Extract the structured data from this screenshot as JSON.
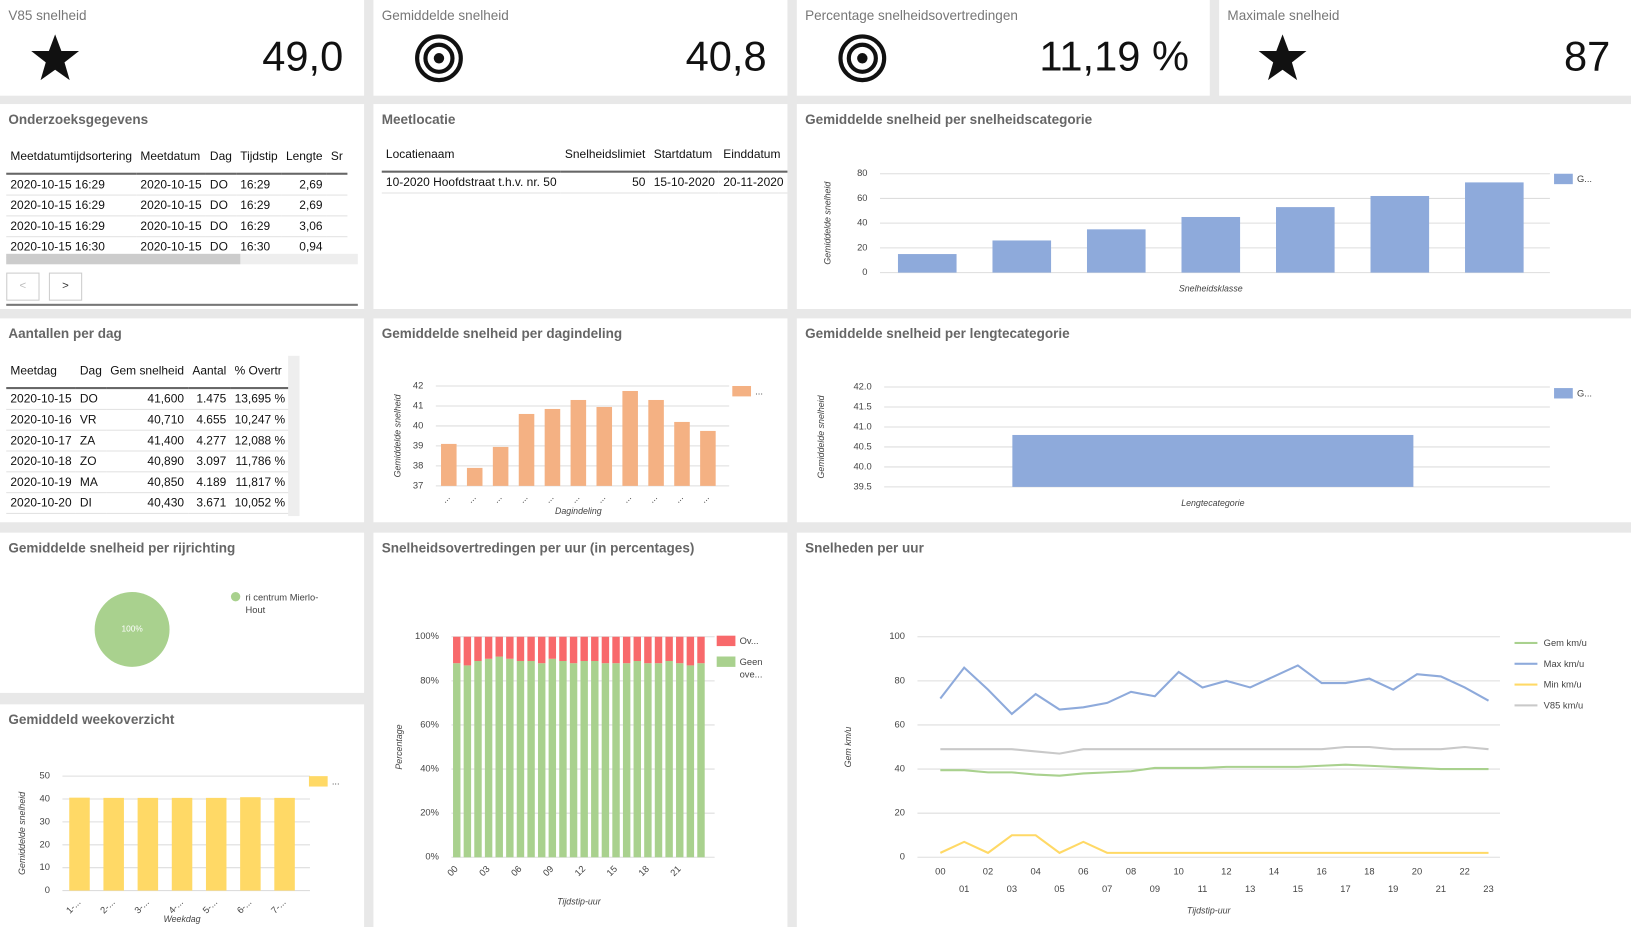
{
  "kpis": [
    {
      "title": "V85 snelheid",
      "value": "49,0"
    },
    {
      "title": "Gemiddelde snelheid",
      "value": "40,8"
    },
    {
      "title": "Percentage snelheidsovertredingen",
      "value": "11,19 %"
    },
    {
      "title": "Maximale snelheid",
      "value": "87"
    }
  ],
  "tables": {
    "onderzoek": {
      "title": "Onderzoeksgegevens",
      "headers": [
        "Meetdatumtijdsortering",
        "Meetdatum",
        "Dag",
        "Tijdstip",
        "Lengte",
        "Sr"
      ],
      "rows": [
        [
          "2020-10-15 16:29",
          "2020-10-15",
          "DO",
          "16:29",
          "2,69",
          ""
        ],
        [
          "2020-10-15 16:29",
          "2020-10-15",
          "DO",
          "16:29",
          "2,69",
          ""
        ],
        [
          "2020-10-15 16:29",
          "2020-10-15",
          "DO",
          "16:29",
          "3,06",
          ""
        ],
        [
          "2020-10-15 16:30",
          "2020-10-15",
          "DO",
          "16:30",
          "0,94",
          ""
        ]
      ],
      "pager": [
        "<",
        ">"
      ]
    },
    "meetlocatie": {
      "title": "Meetlocatie",
      "headers": [
        "Locatienaam",
        "Snelheidslimiet",
        "Startdatum",
        "Einddatum"
      ],
      "rows": [
        [
          "10-2020 Hoofdstraat t.h.v. nr. 50",
          "50",
          "15-10-2020",
          "20-11-2020"
        ]
      ]
    },
    "perdag": {
      "title": "Aantallen per dag",
      "headers": [
        "Meetdag",
        "Dag",
        "Gem snelheid",
        "Aantal",
        "% Overtr"
      ],
      "rows": [
        [
          "2020-10-15",
          "DO",
          "41,600",
          "1.475",
          "13,695 %"
        ],
        [
          "2020-10-16",
          "VR",
          "40,710",
          "4.655",
          "10,247 %"
        ],
        [
          "2020-10-17",
          "ZA",
          "41,400",
          "4.277",
          "12,088 %"
        ],
        [
          "2020-10-18",
          "ZO",
          "40,890",
          "3.097",
          "11,786 %"
        ],
        [
          "2020-10-19",
          "MA",
          "40,850",
          "4.189",
          "11,817 %"
        ],
        [
          "2020-10-20",
          "DI",
          "40,430",
          "3.671",
          "10,052 %"
        ]
      ]
    }
  },
  "chart_data": [
    {
      "type": "bar",
      "title": "Gemiddelde snelheid per snelheidscategorie",
      "x_label": "Snelheidsklasse",
      "y_label": "Gemiddelde snelheid",
      "categories": [
        null,
        null,
        null,
        null,
        null,
        null,
        null
      ],
      "series": [
        {
          "name": "G...",
          "color": "#8eaadb",
          "values": [
            15,
            26,
            35,
            45,
            53,
            62,
            73
          ]
        }
      ],
      "ylim": [
        0,
        80
      ],
      "yticks": [
        0,
        20,
        40,
        60,
        80
      ],
      "grid": true
    },
    {
      "type": "bar",
      "title": "Gemiddelde snelheid per dagindeling",
      "x_label": "Dagindeling",
      "y_label": "Gemiddelde snelheid",
      "categories": [
        "...",
        "...",
        "...",
        "...",
        "...",
        "...",
        "...",
        "...",
        "...",
        "...",
        "..."
      ],
      "series": [
        {
          "name": "...",
          "color": "#f4b183",
          "values": [
            39.1,
            37.9,
            38.95,
            40.6,
            40.85,
            41.3,
            40.95,
            41.75,
            41.3,
            40.2,
            39.75
          ]
        }
      ],
      "ylim": [
        37,
        42
      ],
      "yticks": [
        37,
        38,
        39,
        40,
        41,
        42
      ],
      "grid": true
    },
    {
      "type": "bar",
      "title": "Gemiddelde snelheid per lengtecategorie",
      "x_label": "Lengtecategorie",
      "y_label": "Gemiddelde snelheid",
      "categories": [
        null
      ],
      "series": [
        {
          "name": "G...",
          "color": "#8eaadb",
          "values": [
            40.8
          ]
        }
      ],
      "ylim": [
        39.5,
        42
      ],
      "yticks": [
        39.5,
        {
          "value": 40,
          "label": "40.0"
        },
        40.5,
        {
          "value": 41,
          "label": "41.0"
        },
        41.5,
        {
          "value": 42,
          "label": "42.0"
        }
      ],
      "grid": true
    },
    {
      "type": "pie",
      "title": "Gemiddelde snelheid per rijrichting",
      "categories": [
        "ri centrum Mierlo-Hout"
      ],
      "values": [
        100
      ],
      "value_labels": [
        "100%"
      ],
      "colors": [
        "#a9d18e"
      ]
    },
    {
      "type": "bar",
      "title": "Gemiddeld weekoverzicht",
      "x_label": "Weekdag",
      "y_label": "Gemiddelde snelheid",
      "categories": [
        "1-...",
        "2-...",
        "3-...",
        "4-...",
        "5-...",
        "6-...",
        "7-..."
      ],
      "series": [
        {
          "name": "...",
          "color": "#ffd966",
          "values": [
            40.6,
            40.5,
            40.5,
            40.5,
            40.5,
            40.8,
            40.5
          ]
        }
      ],
      "ylim": [
        0,
        50
      ],
      "yticks": [
        0,
        10,
        20,
        30,
        40,
        50
      ],
      "grid": true
    },
    {
      "type": "stacked_bar",
      "title": "Snelheidsovertredingen per uur (in percentages)",
      "x_label": "Tijdstip-uur",
      "y_label": "Percentage",
      "categories": [
        "00",
        null,
        null,
        "03",
        null,
        null,
        "06",
        null,
        null,
        "09",
        null,
        null,
        "12",
        null,
        null,
        "15",
        null,
        null,
        "18",
        null,
        null,
        "21",
        null,
        null
      ],
      "series": [
        {
          "name": "Ov...",
          "color": "#f8696b",
          "values": [
            12,
            13,
            11,
            10,
            9,
            10,
            11,
            11,
            12,
            10,
            11,
            12,
            11,
            11,
            12,
            12,
            12,
            11,
            12,
            12,
            11,
            12,
            13,
            12
          ]
        },
        {
          "name": "Geen ove...",
          "color": "#a9d18e",
          "values": [
            88,
            87,
            89,
            90,
            91,
            90,
            89,
            89,
            88,
            90,
            89,
            88,
            89,
            89,
            88,
            88,
            88,
            89,
            88,
            88,
            89,
            88,
            87,
            88
          ]
        }
      ],
      "ylim": [
        0,
        100
      ],
      "yticks": [
        {
          "value": 0,
          "label": "0%"
        },
        {
          "value": 20,
          "label": "20%"
        },
        {
          "value": 40,
          "label": "40%"
        },
        {
          "value": 60,
          "label": "60%"
        },
        {
          "value": 80,
          "label": "80%"
        },
        {
          "value": 100,
          "label": "100%"
        }
      ],
      "grid": true
    },
    {
      "type": "line",
      "title": "Snelheden per uur",
      "x_label": "Tijdstip-uur",
      "y_label": "Gem km/u",
      "categories": [
        "00",
        "01",
        "02",
        "03",
        "04",
        "05",
        "06",
        "07",
        "08",
        "09",
        "10",
        "11",
        "12",
        "13",
        "14",
        "15",
        "16",
        "17",
        "18",
        "19",
        "20",
        "21",
        "22",
        "23"
      ],
      "series": [
        {
          "name": "Gem km/u",
          "color": "#a9d18e",
          "values": [
            39.5,
            39.5,
            38.5,
            38.5,
            37.5,
            37,
            38,
            38.5,
            39,
            40.5,
            40.5,
            40.5,
            41,
            41,
            41,
            41,
            41.5,
            42,
            41.5,
            41,
            40.5,
            40,
            40,
            40
          ]
        },
        {
          "name": "Max km/u",
          "color": "#8eaadb",
          "values": [
            72,
            86,
            76,
            65,
            74,
            67,
            68,
            70,
            75,
            73,
            84,
            77,
            80,
            77,
            82,
            87,
            79,
            79,
            81,
            76,
            83,
            82,
            77,
            71
          ]
        },
        {
          "name": "Min km/u",
          "color": "#ffd966",
          "values": [
            2,
            7,
            2,
            10,
            10,
            2,
            7,
            2,
            2,
            2,
            2,
            2,
            2,
            2,
            2,
            2,
            2,
            2,
            2,
            2,
            2,
            2,
            2,
            2
          ]
        },
        {
          "name": "V85 km/u",
          "color": "#c9c9c9",
          "values": [
            49,
            49,
            49,
            49,
            48,
            47,
            49,
            49,
            49,
            49,
            49,
            49,
            49,
            49,
            49,
            49,
            49,
            50,
            50,
            49,
            49,
            49,
            50,
            49
          ]
        }
      ],
      "ylim": [
        0,
        100
      ],
      "yticks": [
        0,
        20,
        40,
        60,
        80,
        100
      ],
      "grid": true
    }
  ]
}
